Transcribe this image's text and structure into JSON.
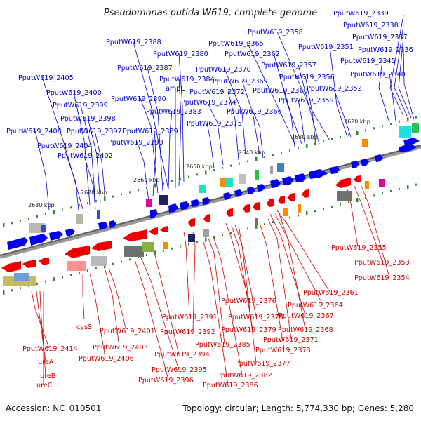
{
  "title": "Pseudomonas putida W619, complete genome",
  "footer": {
    "accession": "Accession: NC_010501",
    "summary": "Topology: circular; Length: 5,774,330 bp; Genes: 5,280"
  },
  "scale_labels": [
    "2680 kbp",
    "2670 kbp",
    "2660 kbp",
    "2650 kbp",
    "2640 kbp",
    "2630 kbp",
    "2620 kbp"
  ],
  "blue_labels": [
    "PputW619_2339",
    "PputW619_2338",
    "PputW619_2337",
    "PputW619_2336",
    "PputW619_2358",
    "PputW619_2351",
    "PputW619_2345",
    "PputW619_2365",
    "PputW619_2362",
    "PputW619_2357",
    "PputW619_2340",
    "PputW619_2370",
    "PputW619_2369",
    "PputW619_2356",
    "PputW619_2352",
    "PputW619_2372",
    "PputW619_2360",
    "PputW619_2359",
    "PputW619_2374",
    "PputW619_2366",
    "PputW619_2375",
    "PputW619_2388",
    "PputW619_2380",
    "PputW619_2387",
    "PputW619_2384",
    "ampC",
    "PputW619_2390",
    "PputW619_2383",
    "PputW619_2389",
    "PputW619_2393",
    "PputW619_2405",
    "PputW619_2400",
    "PputW619_2399",
    "PputW619_2398",
    "PputW619_2397",
    "PputW619_2408",
    "PputW619_2404",
    "PputW619_2402"
  ],
  "red_labels": [
    "PputW619_2355",
    "PputW619_2353",
    "PputW619_2354",
    "PputW619_2361",
    "PputW619_2376",
    "PputW619_2364",
    "PputW619_2391",
    "PputW619_2378",
    "PputW619_2367",
    "PputW619_2392",
    "PputW619_2379",
    "PputW619_2368",
    "cysS",
    "PputW619_2401",
    "PputW619_2385",
    "PputW619_2371",
    "PputW619_2403",
    "PputW619_2394",
    "PputW619_2373",
    "PputW619_2414",
    "PputW619_2406",
    "PputW619_2377",
    "ureA",
    "PputW619_2395",
    "PputW619_2382",
    "ureB",
    "PputW619_2396",
    "PputW619_2386",
    "ureC"
  ],
  "colors": {
    "forward": "#0000ee",
    "reverse": "#ee0000",
    "backbone": "#808080",
    "ticks": "#2e8b2e"
  }
}
